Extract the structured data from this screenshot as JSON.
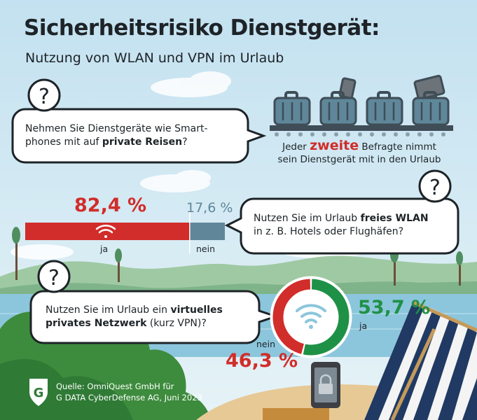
{
  "title": "Sicherheitsrisiko Dienstgerät:",
  "subtitle": "Nutzung von WLAN und VPN im Urlaub",
  "questions": {
    "q1": {
      "pre": "Nehmen Sie Dienstgeräte wie Smart-",
      "line2_pre": "phones mit auf ",
      "bold": "private Reisen",
      "post": "?"
    },
    "q2": {
      "line1_pre": "Nutzen Sie im Urlaub ",
      "line1_bold": "freies WLAN",
      "line2": "in z. B. Hotels oder Flughäfen?"
    },
    "q3": {
      "line1_pre": "Nutzen Sie im Urlaub ein ",
      "line1_bold": "virtuelles",
      "line2_bold": "privates Netzwerk",
      "line2_post": " (kurz VPN)?"
    }
  },
  "note": {
    "pre": "Jeder ",
    "highlight": "zweite",
    "post": " Befragte nimmt",
    "line2": "sein Dienstgerät mit in den Urlaub"
  },
  "source": {
    "line1": "Quelle: OmniQuest GmbH für",
    "line2": "G DATA CyberDefense AG, Juni 2023"
  },
  "colors": {
    "yes": "#d12d2a",
    "no_bar": "#5f8799",
    "yes_vpn": "#1f9146",
    "no_vpn": "#d12d2a"
  },
  "icons": [
    "question-mark-icon",
    "suitcase-icon",
    "wifi-icon",
    "phone-lock-icon",
    "g-data-logo"
  ],
  "chart_data": [
    {
      "type": "bar",
      "question": "Nutzen Sie im Urlaub freies WLAN in z. B. Hotels oder Flughäfen?",
      "categories": [
        "ja",
        "nein"
      ],
      "values": [
        82.4,
        17.6
      ],
      "value_labels": [
        "82,4 %",
        "17,6 %"
      ],
      "unit": "%",
      "stacked": true
    },
    {
      "type": "pie",
      "question": "Nutzen Sie im Urlaub ein virtuelles privates Netzwerk (kurz VPN)?",
      "categories": [
        "ja",
        "nein"
      ],
      "values": [
        53.7,
        46.3
      ],
      "value_labels": [
        "53,7 %",
        "46,3 %"
      ],
      "unit": "%",
      "donut": true
    }
  ]
}
